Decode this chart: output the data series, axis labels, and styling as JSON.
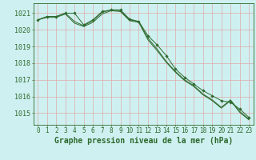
{
  "background_color": "#cff0f0",
  "grid_color_v": "#ddaaaa",
  "grid_color_h": "#ddaaaa",
  "line_color": "#2d6a2d",
  "marker_color": "#2d6a2d",
  "xlabel": "Graphe pression niveau de la mer (hPa)",
  "xlabel_fontsize": 7,
  "ylabel_fontsize": 6,
  "tick_fontsize": 5.5,
  "xlim": [
    -0.5,
    23.5
  ],
  "ylim": [
    1014.3,
    1021.6
  ],
  "yticks": [
    1015,
    1016,
    1017,
    1018,
    1019,
    1020,
    1021
  ],
  "xticks": [
    0,
    1,
    2,
    3,
    4,
    5,
    6,
    7,
    8,
    9,
    10,
    11,
    12,
    13,
    14,
    15,
    16,
    17,
    18,
    19,
    20,
    21,
    22,
    23
  ],
  "series1": [
    1020.6,
    1020.8,
    1020.8,
    1021.0,
    1021.0,
    1020.3,
    1020.6,
    1021.1,
    1021.2,
    1021.2,
    1020.65,
    1020.5,
    1019.65,
    1019.1,
    1018.45,
    1017.65,
    1017.15,
    1016.75,
    1016.35,
    1016.05,
    1015.75,
    1015.65,
    1015.25,
    1014.75
  ],
  "series2": [
    1020.6,
    1020.8,
    1020.8,
    1021.0,
    1020.5,
    1020.25,
    1020.55,
    1021.05,
    1021.2,
    1021.15,
    1020.6,
    1020.5,
    1019.5,
    1018.85,
    1018.1,
    1017.5,
    1017.0,
    1016.65,
    1016.15,
    1015.8,
    1015.35,
    1015.8,
    1015.1,
    1014.65
  ],
  "series3": [
    1020.6,
    1020.75,
    1020.75,
    1020.95,
    1020.4,
    1020.2,
    1020.45,
    1020.95,
    1021.15,
    1021.1,
    1020.55,
    1020.45,
    1019.4,
    1018.75,
    1018.05,
    1017.45,
    1016.95,
    1016.6,
    1016.1,
    1015.75,
    1015.3,
    1015.75,
    1015.05,
    1014.6
  ]
}
